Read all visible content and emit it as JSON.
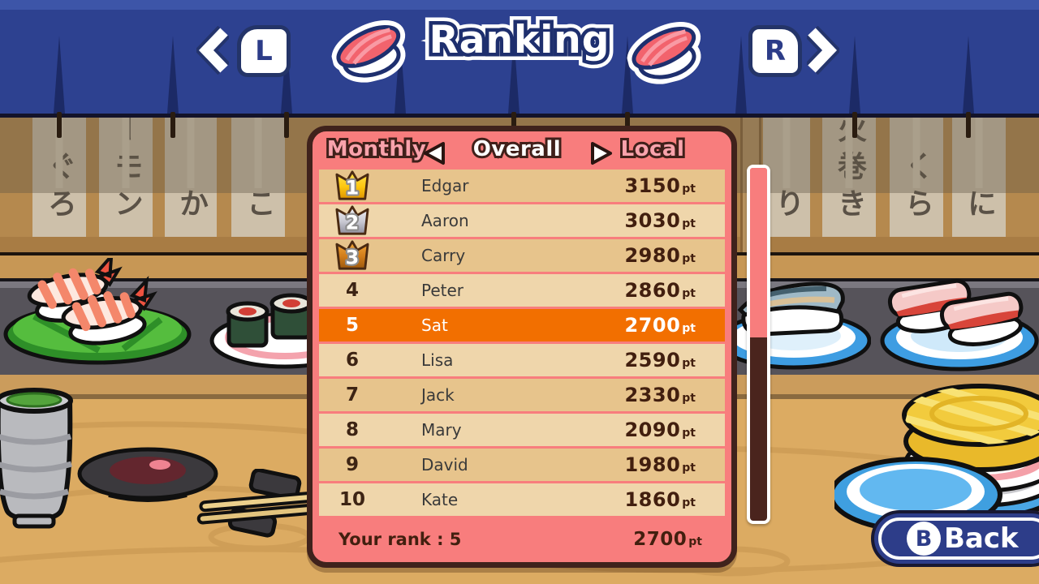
{
  "header": {
    "title": "Ranking",
    "left_bumper": "L",
    "right_bumper": "R"
  },
  "tabs": {
    "previous": "Monthly",
    "current": "Overall",
    "next": "Local"
  },
  "leaderboard": {
    "unit": "pt",
    "rows": [
      {
        "rank": 1,
        "name": "Edgar",
        "points": "3150",
        "crown": "gold",
        "highlight": false
      },
      {
        "rank": 2,
        "name": "Aaron",
        "points": "3030",
        "crown": "silver",
        "highlight": false
      },
      {
        "rank": 3,
        "name": "Carry",
        "points": "2980",
        "crown": "bronze",
        "highlight": false
      },
      {
        "rank": 4,
        "name": "Peter",
        "points": "2860",
        "crown": null,
        "highlight": false
      },
      {
        "rank": 5,
        "name": "Sat",
        "points": "2700",
        "crown": null,
        "highlight": true
      },
      {
        "rank": 6,
        "name": "Lisa",
        "points": "2590",
        "crown": null,
        "highlight": false
      },
      {
        "rank": 7,
        "name": "Jack",
        "points": "2330",
        "crown": null,
        "highlight": false
      },
      {
        "rank": 8,
        "name": "Mary",
        "points": "2090",
        "crown": null,
        "highlight": false
      },
      {
        "rank": 9,
        "name": "David",
        "points": "1980",
        "crown": null,
        "highlight": false
      },
      {
        "rank": 10,
        "name": "Kate",
        "points": "1860",
        "crown": null,
        "highlight": false
      }
    ],
    "footer": {
      "label": "Your rank : 5",
      "points": "2700"
    }
  },
  "scroll": {
    "thumb_ratio": 0.48
  },
  "back_button": {
    "key": "B",
    "label": "Back"
  },
  "background": {
    "menu_strips": [
      "ぐろ",
      "ーモン",
      "か",
      "こ",
      "り",
      "火巻き",
      "くら",
      "に"
    ]
  },
  "colors": {
    "curtain_navy": "#2d4190",
    "panel_salmon": "#f87d7d",
    "panel_border": "#3f221c",
    "row_dark_tan": "#e7c48c",
    "row_light_tan": "#efd6ab",
    "highlight_orange": "#f26f00",
    "points_brown": "#421f0f",
    "crown_gold": "#fdc710",
    "crown_silver": "#c9c9d2",
    "crown_bronze": "#d07c1a",
    "button_navy": "#2d3d89"
  }
}
